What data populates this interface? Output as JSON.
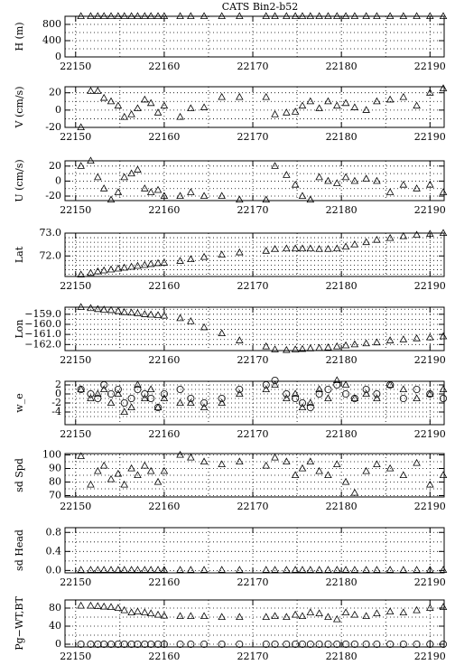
{
  "chart_data": [
    {
      "type": "scatter",
      "title": "CATS  Bin2-b52",
      "ylabel": "H (m)",
      "x": [
        22150.6,
        22151.7,
        22152.5,
        22153.2,
        22154,
        22154.8,
        22155.5,
        22156.3,
        22157,
        22157.8,
        22158.5,
        22159.3,
        22160,
        22161.8,
        22163,
        22164.5,
        22166.5,
        22168.5,
        22171.5,
        22172.5,
        22173.8,
        22174.8,
        22175.6,
        22176.5,
        22177.5,
        22178.5,
        22179.5,
        22180.5,
        22181.5,
        22182.8,
        22184,
        22185.5,
        22187,
        22188.5,
        22190,
        22191.5
      ],
      "series": [
        {
          "marker": "triangle",
          "color": "#000000",
          "values": [
            1000,
            1000,
            1000,
            1000,
            1000,
            1000,
            1000,
            1000,
            1000,
            1000,
            1000,
            1000,
            1000,
            1000,
            1000,
            1000,
            1000,
            1000,
            1000,
            1000,
            1000,
            1000,
            1000,
            1000,
            1000,
            1000,
            1000,
            1000,
            1000,
            1000,
            1000,
            1000,
            1000,
            1000,
            1000,
            1000
          ]
        }
      ],
      "xlim": [
        22148.8,
        22191.6
      ],
      "xticks": [
        22150,
        22160,
        22170,
        22180,
        22190
      ],
      "xminor": [
        22155,
        22165,
        22175,
        22185
      ],
      "ylim": [
        0,
        1000
      ],
      "yticks": [
        0,
        400,
        800
      ],
      "ygrid": [
        200,
        600,
        1000
      ],
      "grid": true
    },
    {
      "type": "scatter",
      "ylabel": "V (cm/s)",
      "x": [
        22150.6,
        22151.7,
        22152.5,
        22153.2,
        22154,
        22154.8,
        22155.5,
        22156.3,
        22157,
        22157.8,
        22158.5,
        22159.3,
        22160,
        22161.8,
        22163,
        22164.5,
        22166.5,
        22168.5,
        22171.5,
        22172.5,
        22173.8,
        22174.8,
        22175.6,
        22176.5,
        22177.5,
        22178.5,
        22179.5,
        22180.5,
        22181.5,
        22182.8,
        22184,
        22185.5,
        22187,
        22188.5,
        22190,
        22191.5
      ],
      "series": [
        {
          "marker": "triangle",
          "color": "#000000",
          "values": [
            -20,
            22,
            22,
            14,
            10,
            5,
            -8,
            -5,
            2,
            12,
            8,
            -3,
            5,
            -8,
            2,
            3,
            15,
            15,
            15,
            -5,
            -3,
            -2,
            5,
            10,
            2,
            10,
            5,
            8,
            3,
            0,
            10,
            12,
            15,
            5,
            20,
            25
          ]
        }
      ],
      "xlim": [
        22148.8,
        22191.6
      ],
      "xticks": [
        22150,
        22160,
        22170,
        22180,
        22190
      ],
      "xminor": [
        22155,
        22165,
        22175,
        22185
      ],
      "ylim": [
        -20,
        27
      ],
      "yticks": [
        -20,
        0,
        20
      ],
      "ygrid": [
        -10,
        10
      ],
      "grid": true
    },
    {
      "type": "scatter",
      "ylabel": "U (cm/s)",
      "x": [
        22150.6,
        22151.7,
        22152.5,
        22153.2,
        22154,
        22154.8,
        22155.5,
        22156.3,
        22157,
        22157.8,
        22158.5,
        22159.3,
        22160,
        22161.8,
        22163,
        22164.5,
        22166.5,
        22168.5,
        22171.5,
        22172.5,
        22173.8,
        22174.8,
        22175.6,
        22176.5,
        22177.5,
        22178.5,
        22179.5,
        22180.5,
        22181.5,
        22182.8,
        22184,
        22185.5,
        22187,
        22188.5,
        22190,
        22191.5
      ],
      "series": [
        {
          "marker": "triangle",
          "color": "#000000",
          "values": [
            20,
            27,
            5,
            -10,
            -25,
            -15,
            5,
            10,
            15,
            -10,
            -15,
            -12,
            -20,
            -20,
            -15,
            -20,
            -20,
            -25,
            -25,
            20,
            8,
            -5,
            -20,
            -25,
            5,
            0,
            -3,
            5,
            0,
            3,
            0,
            -15,
            -5,
            -10,
            -5,
            -15
          ]
        }
      ],
      "xlim": [
        22148.8,
        22191.6
      ],
      "xticks": [
        22150,
        22160,
        22170,
        22180,
        22190
      ],
      "xminor": [
        22155,
        22165,
        22175,
        22185
      ],
      "ylim": [
        -26,
        27
      ],
      "yticks": [
        -20,
        0,
        20
      ],
      "ygrid": [
        -10,
        10
      ],
      "grid": true
    },
    {
      "type": "scatter",
      "ylabel": "Lat",
      "x": [
        22150.6,
        22151.7,
        22152.5,
        22153.2,
        22154,
        22154.8,
        22155.5,
        22156.3,
        22157,
        22157.8,
        22158.5,
        22159.3,
        22160,
        22161.8,
        22163,
        22164.5,
        22166.5,
        22168.5,
        22171.5,
        22172.5,
        22173.8,
        22174.8,
        22175.6,
        22176.5,
        22177.5,
        22178.5,
        22179.5,
        22180.5,
        22181.5,
        22182.8,
        22184,
        22185.5,
        22187,
        22188.5,
        22190,
        22191.5
      ],
      "series": [
        {
          "marker": "triangle",
          "color": "#000000",
          "values": [
            71.18,
            71.25,
            71.32,
            71.36,
            71.4,
            71.44,
            71.48,
            71.52,
            71.56,
            71.6,
            71.64,
            71.68,
            71.7,
            71.78,
            71.85,
            71.95,
            72.05,
            72.15,
            72.22,
            72.3,
            72.32,
            72.32,
            72.32,
            72.32,
            72.3,
            72.3,
            72.32,
            72.4,
            72.5,
            72.6,
            72.7,
            72.78,
            72.86,
            72.92,
            72.96,
            73.0
          ]
        }
      ],
      "xlim": [
        22148.8,
        22191.6
      ],
      "xticks": [
        22150,
        22160,
        22170,
        22180,
        22190
      ],
      "xminor": [
        22155,
        22165,
        22175,
        22185
      ],
      "ylim": [
        71.1,
        73.0
      ],
      "yticks": [
        {
          "value": 72,
          "label": "72.0"
        },
        {
          "value": 73,
          "label": "73.0"
        }
      ],
      "ygrid": [
        71.2,
        71.4,
        71.6,
        71.8,
        72.2,
        72.4,
        72.6,
        72.8
      ],
      "grid": true
    },
    {
      "type": "scatter",
      "ylabel": "Lon",
      "x": [
        22150.6,
        22151.7,
        22152.5,
        22153.2,
        22154,
        22154.8,
        22155.5,
        22156.3,
        22157,
        22157.8,
        22158.5,
        22159.3,
        22160,
        22161.8,
        22163,
        22164.5,
        22166.5,
        22168.5,
        22171.5,
        22172.5,
        22173.8,
        22174.8,
        22175.6,
        22176.5,
        22177.5,
        22178.5,
        22179.5,
        22180.5,
        22181.5,
        22182.8,
        22184,
        22185.5,
        22187,
        22188.5,
        22190,
        22191.5
      ],
      "series": [
        {
          "marker": "triangle",
          "color": "#000000",
          "values": [
            -158.3,
            -158.4,
            -158.5,
            -158.55,
            -158.6,
            -158.7,
            -158.8,
            -158.85,
            -158.9,
            -159.0,
            -159.05,
            -159.1,
            -159.15,
            -159.4,
            -159.7,
            -160.3,
            -160.9,
            -161.6,
            -162.2,
            -162.5,
            -162.55,
            -162.5,
            -162.45,
            -162.4,
            -162.35,
            -162.3,
            -162.2,
            -162.1,
            -162.0,
            -161.9,
            -161.8,
            -161.6,
            -161.5,
            -161.4,
            -161.3,
            -161.2
          ]
        }
      ],
      "xlim": [
        22148.8,
        22191.6
      ],
      "xticks": [
        22150,
        22160,
        22170,
        22180,
        22190
      ],
      "xminor": [
        22155,
        22165,
        22175,
        22185
      ],
      "ylim": [
        -162.6,
        -158.3
      ],
      "yticks": [
        {
          "value": -162,
          "label": "−162.0"
        },
        {
          "value": -161,
          "label": "−161.0"
        },
        {
          "value": -160,
          "label": "−160.0"
        },
        {
          "value": -159,
          "label": "−159.0"
        }
      ],
      "ygrid": [
        -161.5,
        -160.5,
        -159.5,
        -158.5
      ],
      "grid": true
    },
    {
      "type": "scatter",
      "ylabel": "w_e",
      "x": [
        22150.6,
        22151.7,
        22152.5,
        22153.2,
        22154,
        22154.8,
        22155.5,
        22156.3,
        22157,
        22157.8,
        22158.5,
        22159.3,
        22160,
        22161.8,
        22163,
        22164.5,
        22166.5,
        22168.5,
        22171.5,
        22172.5,
        22173.8,
        22174.8,
        22175.6,
        22176.5,
        22177.5,
        22178.5,
        22179.5,
        22180.5,
        22181.5,
        22182.8,
        22184,
        22185.5,
        22187,
        22188.5,
        22190,
        22191.5
      ],
      "series": [
        {
          "marker": "triangle",
          "color": "#000000",
          "values": [
            1,
            -1,
            0,
            1,
            -2,
            0,
            -4,
            -3,
            2,
            -1,
            1,
            -3,
            -1,
            -2,
            -2,
            -3,
            -2,
            0,
            1,
            2,
            -1,
            0,
            -3,
            -2,
            1,
            -1,
            3,
            2,
            -1,
            0,
            -1,
            2,
            1,
            -1,
            0,
            1
          ]
        },
        {
          "marker": "circle",
          "color": "#000000",
          "values": [
            1,
            0,
            -1,
            2,
            0,
            1,
            -2,
            -1,
            1,
            0,
            -1,
            -3,
            0,
            1,
            -1,
            -2,
            -1,
            1,
            2,
            3,
            0,
            -1,
            -2,
            -3,
            0,
            1,
            2,
            0,
            -1,
            1,
            0,
            2,
            -1,
            1,
            0,
            -1
          ]
        }
      ],
      "xlim": [
        22148.8,
        22191.6
      ],
      "xticks": [
        22150,
        22160,
        22170,
        22180,
        22190
      ],
      "xminor": [
        22155,
        22165,
        22175,
        22185
      ],
      "ylim": [
        -6.8,
        2.8
      ],
      "yticks": [
        -4,
        -2,
        0,
        2
      ],
      "ygrid": [
        -5,
        -3,
        -1,
        1
      ],
      "grid": true
    },
    {
      "type": "scatter",
      "ylabel": "sd Spd",
      "x": [
        22150.6,
        22151.7,
        22152.5,
        22153.2,
        22154,
        22154.8,
        22155.5,
        22156.3,
        22157,
        22157.8,
        22158.5,
        22159.3,
        22160,
        22161.8,
        22163,
        22164.5,
        22166.5,
        22168.5,
        22171.5,
        22172.5,
        22173.8,
        22174.8,
        22175.6,
        22176.5,
        22177.5,
        22178.5,
        22179.5,
        22180.5,
        22181.5,
        22182.8,
        22184,
        22185.5,
        22187,
        22188.5,
        22190,
        22191.5
      ],
      "series": [
        {
          "marker": "triangle",
          "color": "#000000",
          "values": [
            99,
            78,
            88,
            92,
            82,
            86,
            78,
            90,
            85,
            92,
            88,
            80,
            88,
            100,
            98,
            95,
            93,
            95,
            92,
            98,
            95,
            85,
            90,
            95,
            88,
            85,
            93,
            80,
            72,
            88,
            93,
            90,
            85,
            94,
            78,
            85
          ]
        }
      ],
      "xlim": [
        22148.8,
        22191.6
      ],
      "xticks": [
        22150,
        22160,
        22170,
        22180,
        22190
      ],
      "xminor": [
        22155,
        22165,
        22175,
        22185
      ],
      "ylim": [
        69,
        101
      ],
      "yticks": [
        70,
        80,
        90,
        100
      ],
      "ygrid": [
        75,
        85,
        95
      ],
      "grid": true
    },
    {
      "type": "scatter",
      "ylabel": "sd Head",
      "x": [
        22150.6,
        22151.7,
        22152.5,
        22153.2,
        22154,
        22154.8,
        22155.5,
        22156.3,
        22157,
        22157.8,
        22158.5,
        22159.3,
        22160,
        22161.8,
        22163,
        22164.5,
        22166.5,
        22168.5,
        22171.5,
        22172.5,
        22173.8,
        22174.8,
        22175.6,
        22176.5,
        22177.5,
        22178.5,
        22179.5,
        22180.5,
        22181.5,
        22182.8,
        22184,
        22185.5,
        22187,
        22188.5,
        22190,
        22191.5
      ],
      "series": [
        {
          "marker": "triangle",
          "color": "#000000",
          "values": [
            0.01,
            0.01,
            0.01,
            0.01,
            0.01,
            0.01,
            0.01,
            0.01,
            0.01,
            0.01,
            0.01,
            0.01,
            0.01,
            0.01,
            0.01,
            0.01,
            0.01,
            0.01,
            0.01,
            0.01,
            0.01,
            0.01,
            0.01,
            0.01,
            0.01,
            0.01,
            0.01,
            0.01,
            0.01,
            0.01,
            0.01,
            0.01,
            0.01,
            0.01,
            0.01,
            0.01
          ]
        }
      ],
      "xlim": [
        22148.8,
        22191.6
      ],
      "xticks": [
        22150,
        22160,
        22170,
        22180,
        22190
      ],
      "xminor": [
        22155,
        22165,
        22175,
        22185
      ],
      "ylim": [
        -0.05,
        0.9
      ],
      "yticks": [
        {
          "value": 0,
          "label": "0.0"
        },
        {
          "value": 0.4,
          "label": "0.4"
        },
        {
          "value": 0.8,
          "label": "0.8"
        }
      ],
      "ygrid": [
        0.2,
        0.6
      ],
      "grid": true
    },
    {
      "type": "scatter",
      "ylabel": "Pg−WT,BT",
      "x": [
        22150.6,
        22151.7,
        22152.5,
        22153.2,
        22154,
        22154.8,
        22155.5,
        22156.3,
        22157,
        22157.8,
        22158.5,
        22159.3,
        22160,
        22161.8,
        22163,
        22164.5,
        22166.5,
        22168.5,
        22171.5,
        22172.5,
        22173.8,
        22174.8,
        22175.6,
        22176.5,
        22177.5,
        22178.5,
        22179.5,
        22180.5,
        22181.5,
        22182.8,
        22184,
        22185.5,
        22187,
        22188.5,
        22190,
        22191.5
      ],
      "series": [
        {
          "marker": "triangle",
          "color": "#000000",
          "values": [
            85,
            85,
            84,
            83,
            82,
            80,
            75,
            70,
            72,
            70,
            68,
            65,
            63,
            62,
            62,
            62,
            60,
            60,
            60,
            62,
            60,
            65,
            62,
            70,
            68,
            60,
            55,
            70,
            65,
            62,
            68,
            72,
            70,
            75,
            80,
            82
          ]
        },
        {
          "marker": "circle",
          "color": "#000000",
          "values": [
            0,
            0,
            0,
            0,
            0,
            0,
            0,
            0,
            0,
            0,
            0,
            0,
            0,
            0,
            0,
            0,
            0,
            0,
            0,
            0,
            0,
            0,
            0,
            0,
            0,
            0,
            0,
            0,
            0,
            0,
            0,
            0,
            0,
            0,
            0,
            0
          ]
        }
      ],
      "xlim": [
        22148.8,
        22191.6
      ],
      "xticks": [
        22150,
        22160,
        22170,
        22180,
        22190
      ],
      "xminor": [
        22155,
        22165,
        22175,
        22185
      ],
      "ylim": [
        -6,
        98
      ],
      "yticks": [
        0,
        40,
        80
      ],
      "ygrid": [
        20,
        60
      ],
      "grid": true
    }
  ]
}
